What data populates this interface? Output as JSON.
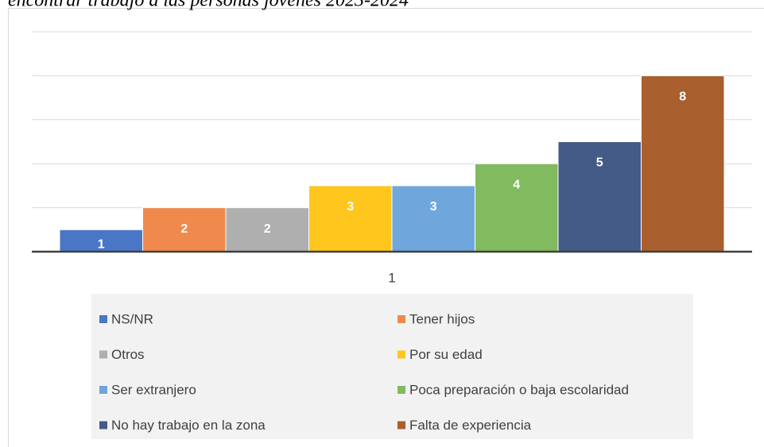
{
  "chart_data": {
    "type": "bar",
    "title": "encontrar trabajo a las personas jóvenes 2023-2024",
    "categories": [
      "1"
    ],
    "series": [
      {
        "name": "NS/NR",
        "color": "#4a76c8",
        "values": [
          1
        ]
      },
      {
        "name": "Tener hijos",
        "color": "#ef8a4c",
        "values": [
          2
        ]
      },
      {
        "name": "Otros",
        "color": "#afafaf",
        "values": [
          2
        ]
      },
      {
        "name": "Por su edad",
        "color": "#ffc61e",
        "values": [
          3
        ]
      },
      {
        "name": "Ser extranjero",
        "color": "#6fa7dc",
        "values": [
          3
        ]
      },
      {
        "name": "Poca preparación o baja escolaridad",
        "color": "#82ba5f",
        "values": [
          4
        ]
      },
      {
        "name": "No hay trabajo en la zona",
        "color": "#445a87",
        "values": [
          5
        ]
      },
      {
        "name": "Falta de experiencia",
        "color": "#a95f2e",
        "values": [
          8
        ]
      }
    ],
    "ylim": [
      0,
      10
    ],
    "yticks": [
      0,
      2,
      4,
      6,
      8,
      10
    ],
    "grid": true,
    "legend": "bottom"
  }
}
